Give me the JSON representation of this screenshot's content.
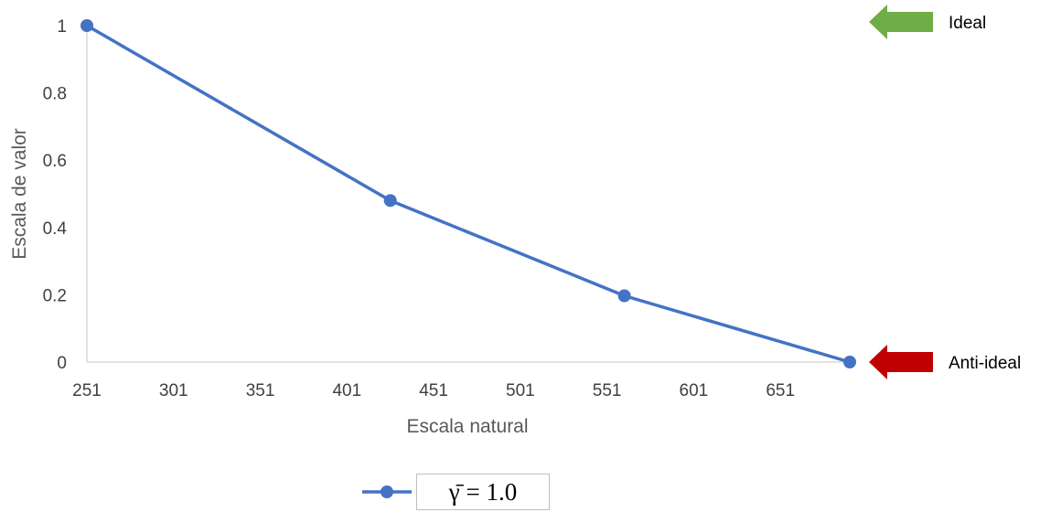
{
  "chart_data": {
    "type": "line",
    "x": [
      251,
      426,
      561,
      691
    ],
    "series": [
      {
        "name": "γ̄ = 1.0",
        "values": [
          1.0,
          0.48,
          0.197,
          0.0
        ],
        "color": "#4472C4"
      }
    ],
    "xlabel": "Escala natural",
    "ylabel": "Escala de valor",
    "xlim": [
      251,
      691
    ],
    "ylim": [
      0,
      1
    ],
    "xticks": [
      "251",
      "301",
      "351",
      "401",
      "451",
      "501",
      "551",
      "601",
      "651"
    ],
    "yticks": [
      "0",
      "0.2",
      "0.4",
      "0.6",
      "0.8",
      "1"
    ],
    "grid": false,
    "legend": "bottom",
    "annotations": [
      {
        "label": "Ideal",
        "value": 1,
        "arrow_color": "#70AD47"
      },
      {
        "label": "Anti-ideal",
        "value": 0,
        "arrow_color": "#C00000"
      }
    ]
  },
  "legend_text": "γ̄ = 1.0"
}
